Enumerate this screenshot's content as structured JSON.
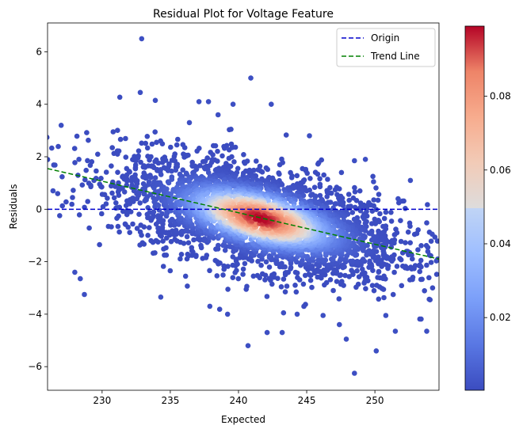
{
  "chart_data": {
    "type": "scatter",
    "title": "Residual Plot for Voltage Feature",
    "xlabel": "Expected",
    "ylabel": "Residuals",
    "xlim": [
      226.0,
      254.7
    ],
    "ylim": [
      -6.9,
      7.1
    ],
    "xticks": [
      230,
      235,
      240,
      245,
      250
    ],
    "yticks": [
      -6,
      -4,
      -2,
      0,
      2,
      4,
      6
    ],
    "grid": false,
    "legend": {
      "placement": "top-right",
      "entries": [
        {
          "label": "Origin",
          "color": "#0000cc",
          "style": "dashed"
        },
        {
          "label": "Trend Line",
          "color": "#008000",
          "style": "dashed"
        }
      ]
    },
    "origin_line": {
      "y": 0
    },
    "trend_line": {
      "x": [
        226.0,
        254.7
      ],
      "y": [
        1.55,
        -1.9
      ]
    },
    "density_cloud": {
      "center": [
        241.6,
        -0.35
      ],
      "spread_x": 5.2,
      "slope": -0.12,
      "spread_resid": 0.95
    },
    "outliers": [
      [
        232.9,
        6.5
      ],
      [
        240.9,
        5.0
      ],
      [
        232.8,
        4.45
      ],
      [
        233.9,
        4.15
      ],
      [
        242.4,
        4.0
      ],
      [
        239.6,
        4.0
      ],
      [
        237.1,
        4.1
      ],
      [
        237.8,
        4.1
      ],
      [
        238.5,
        3.6
      ],
      [
        236.4,
        3.3
      ],
      [
        227.0,
        3.2
      ],
      [
        228.3,
        1.9
      ],
      [
        226.4,
        0.7
      ],
      [
        228.0,
        -2.4
      ],
      [
        228.4,
        -2.65
      ],
      [
        228.7,
        -3.25
      ],
      [
        248.5,
        -6.25
      ],
      [
        250.1,
        -5.4
      ],
      [
        247.9,
        -4.95
      ],
      [
        247.4,
        -4.4
      ],
      [
        251.5,
        -4.65
      ],
      [
        253.8,
        -4.65
      ],
      [
        240.7,
        -5.2
      ],
      [
        242.1,
        -4.7
      ],
      [
        243.2,
        -4.7
      ],
      [
        243.3,
        -3.95
      ],
      [
        244.3,
        -4.0
      ],
      [
        239.2,
        -4.0
      ],
      [
        246.2,
        -4.05
      ],
      [
        250.8,
        -4.05
      ],
      [
        237.9,
        -3.7
      ],
      [
        234.3,
        -3.35
      ],
      [
        245.2,
        2.8
      ],
      [
        248.5,
        1.85
      ],
      [
        249.3,
        1.9
      ],
      [
        252.6,
        1.1
      ],
      [
        254.2,
        -0.95
      ],
      [
        254.6,
        -1.9
      ],
      [
        251.7,
        0.4
      ],
      [
        249.9,
        1.05
      ]
    ],
    "colorbar": {
      "colormap": "coolwarm",
      "range": [
        0.0003,
        0.099
      ],
      "ticks": [
        0.02,
        0.04,
        0.06,
        0.08
      ]
    }
  }
}
